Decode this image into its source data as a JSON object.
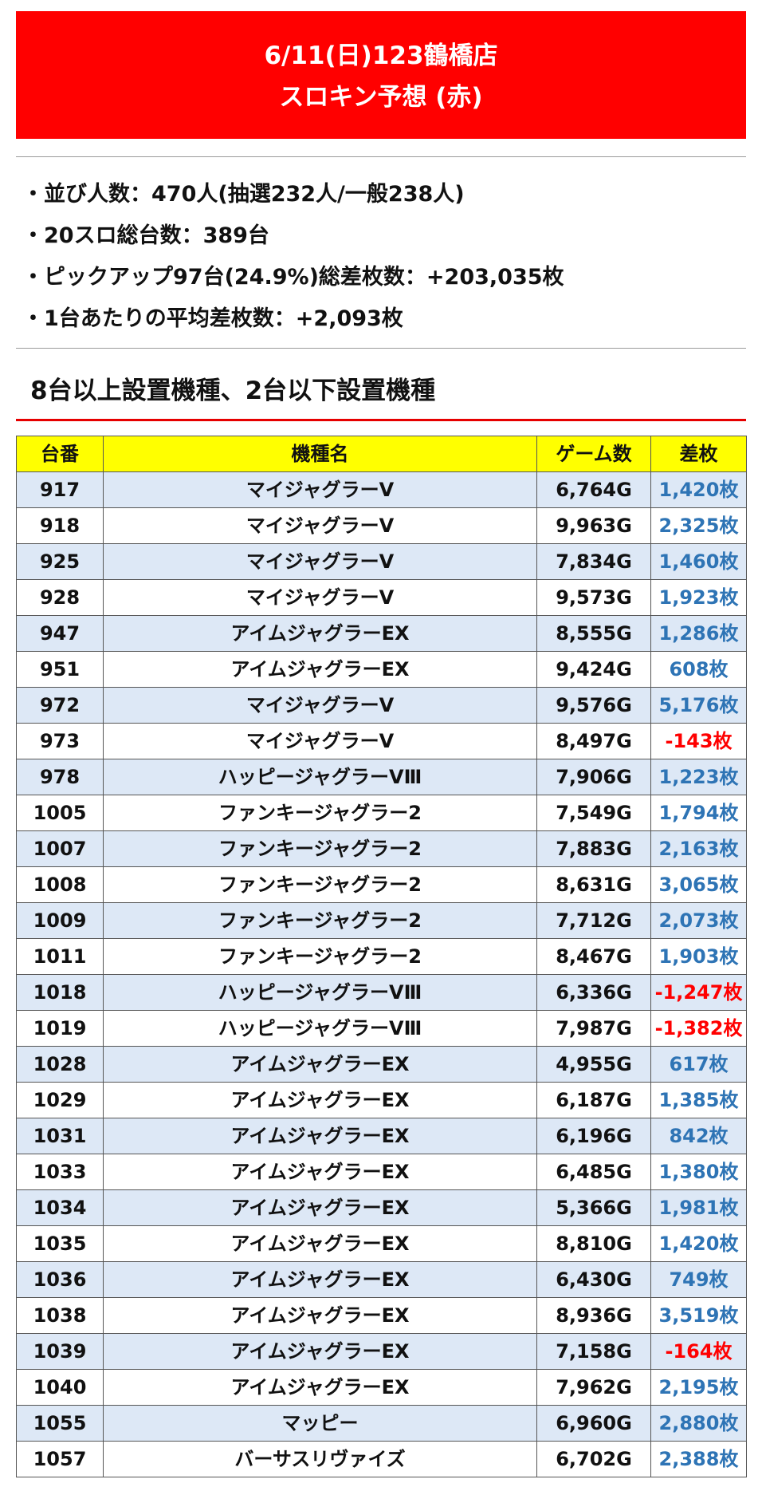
{
  "header": {
    "title_line1": "6/11(日)123鶴橋店",
    "title_line2": "スロキン予想 (赤)"
  },
  "stats": [
    "・並び人数：470人(抽選232人/一般238人)",
    "・20スロ総台数：389台",
    "・ピックアップ97台(24.9%)総差枚数：+203,035枚",
    "・1台あたりの平均差枚数：+2,093枚"
  ],
  "section": {
    "title": "8台以上設置機種、2台以下設置機種"
  },
  "colors": {
    "banner": "#ff0000",
    "header_row": "#ffff00",
    "row_stripe": "#dde8f6",
    "positive": "#2e74b5",
    "negative": "#ff0000"
  },
  "table": {
    "headers": [
      "台番",
      "機種名",
      "ゲーム数",
      "差枚"
    ],
    "rows": [
      [
        "917",
        "マイジャグラーV",
        "6,764G",
        "1,420枚"
      ],
      [
        "918",
        "マイジャグラーV",
        "9,963G",
        "2,325枚"
      ],
      [
        "925",
        "マイジャグラーV",
        "7,834G",
        "1,460枚"
      ],
      [
        "928",
        "マイジャグラーV",
        "9,573G",
        "1,923枚"
      ],
      [
        "947",
        "アイムジャグラーEX",
        "8,555G",
        "1,286枚"
      ],
      [
        "951",
        "アイムジャグラーEX",
        "9,424G",
        "608枚"
      ],
      [
        "972",
        "マイジャグラーV",
        "9,576G",
        "5,176枚"
      ],
      [
        "973",
        "マイジャグラーV",
        "8,497G",
        "-143枚"
      ],
      [
        "978",
        "ハッピージャグラーVⅢ",
        "7,906G",
        "1,223枚"
      ],
      [
        "1005",
        "ファンキージャグラー2",
        "7,549G",
        "1,794枚"
      ],
      [
        "1007",
        "ファンキージャグラー2",
        "7,883G",
        "2,163枚"
      ],
      [
        "1008",
        "ファンキージャグラー2",
        "8,631G",
        "3,065枚"
      ],
      [
        "1009",
        "ファンキージャグラー2",
        "7,712G",
        "2,073枚"
      ],
      [
        "1011",
        "ファンキージャグラー2",
        "8,467G",
        "1,903枚"
      ],
      [
        "1018",
        "ハッピージャグラーVⅢ",
        "6,336G",
        "-1,247枚"
      ],
      [
        "1019",
        "ハッピージャグラーVⅢ",
        "7,987G",
        "-1,382枚"
      ],
      [
        "1028",
        "アイムジャグラーEX",
        "4,955G",
        "617枚"
      ],
      [
        "1029",
        "アイムジャグラーEX",
        "6,187G",
        "1,385枚"
      ],
      [
        "1031",
        "アイムジャグラーEX",
        "6,196G",
        "842枚"
      ],
      [
        "1033",
        "アイムジャグラーEX",
        "6,485G",
        "1,380枚"
      ],
      [
        "1034",
        "アイムジャグラーEX",
        "5,366G",
        "1,981枚"
      ],
      [
        "1035",
        "アイムジャグラーEX",
        "8,810G",
        "1,420枚"
      ],
      [
        "1036",
        "アイムジャグラーEX",
        "6,430G",
        "749枚"
      ],
      [
        "1038",
        "アイムジャグラーEX",
        "8,936G",
        "3,519枚"
      ],
      [
        "1039",
        "アイムジャグラーEX",
        "7,158G",
        "-164枚"
      ],
      [
        "1040",
        "アイムジャグラーEX",
        "7,962G",
        "2,195枚"
      ],
      [
        "1055",
        "マッピー",
        "6,960G",
        "2,880枚"
      ],
      [
        "1057",
        "バーサスリヴァイズ",
        "6,702G",
        "2,388枚"
      ]
    ]
  }
}
